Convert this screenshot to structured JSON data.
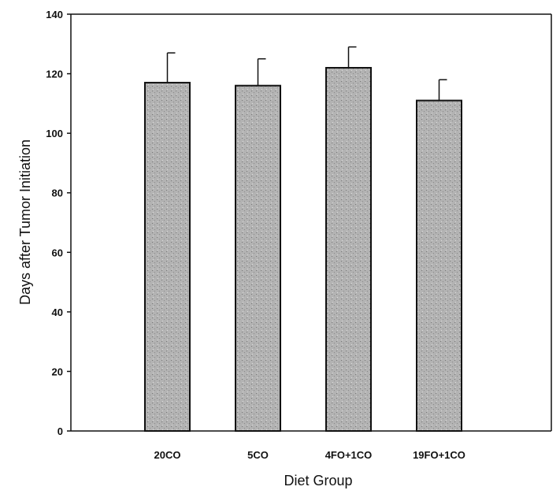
{
  "chart_data": {
    "type": "bar",
    "categories": [
      "20CO",
      "5CO",
      "4FO+1CO",
      "19FO+1CO"
    ],
    "values": [
      117,
      116,
      122,
      111
    ],
    "error_upper": [
      127,
      125,
      129,
      118
    ],
    "xlabel": "Diet Group",
    "ylabel": "Days after Tumor Initiation",
    "ylim": [
      0,
      140
    ],
    "yticks": [
      "0",
      "20",
      "40",
      "60",
      "80",
      "100",
      "120",
      "140"
    ],
    "grid": false,
    "legend": "none",
    "bar_color": "#b3b3b3",
    "border_color": "#111111"
  }
}
